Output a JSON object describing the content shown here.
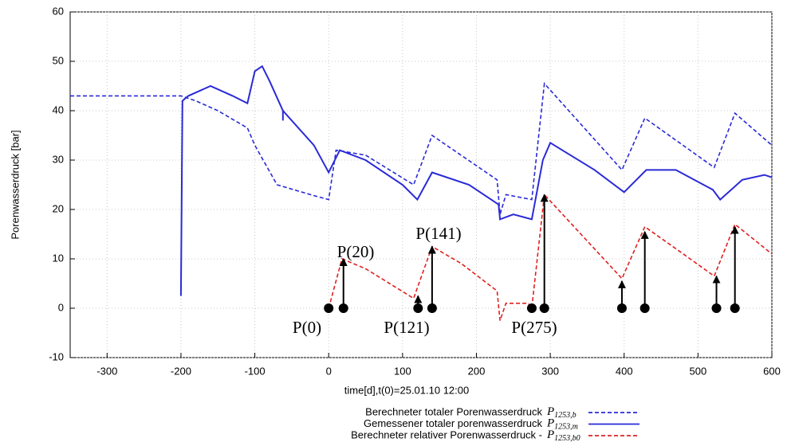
{
  "chart_data": {
    "type": "line",
    "xlabel": "time[d],t(0)=25.01.10 12:00",
    "ylabel": "Porenwasserdruck [bar]",
    "xlim": [
      -350,
      600
    ],
    "ylim": [
      -10,
      60
    ],
    "xticks": [
      -300,
      -200,
      -100,
      0,
      100,
      200,
      300,
      400,
      500,
      600
    ],
    "yticks": [
      -10,
      0,
      10,
      20,
      30,
      40,
      50,
      60
    ],
    "grid": true,
    "legend": "bottom",
    "series": [
      {
        "name": "Berechneter totaler Porenwasserdruck",
        "symbol": "P",
        "symbol_sub": "1253,b",
        "color": "#2a2ad8",
        "style": "dashed",
        "x": [
          -350,
          -200,
          -180,
          -150,
          -110,
          -100,
          -70,
          -20,
          0,
          10,
          50,
          115,
          140,
          228,
          232,
          240,
          275,
          292,
          397,
          428,
          522,
          550,
          600
        ],
        "values": [
          43,
          43,
          42,
          40,
          36.5,
          33,
          25,
          22.8,
          22,
          32,
          31,
          25,
          35,
          26,
          19,
          23,
          22,
          45.5,
          28,
          38.5,
          28.5,
          39.5,
          33
        ]
      },
      {
        "name": "Gemessener totaler porenwasserdruck",
        "symbol": "P",
        "symbol_sub": "1253,m",
        "color": "#2a2ad8",
        "style": "solid",
        "x": [
          -200,
          -198,
          -190,
          -160,
          -130,
          -110,
          -100,
          -90,
          -80,
          -62,
          -62,
          -62,
          -20,
          0,
          15,
          50,
          100,
          120,
          140,
          190,
          230,
          232,
          250,
          275,
          290,
          300,
          360,
          400,
          430,
          470,
          520,
          530,
          560,
          590,
          600
        ],
        "values": [
          2.5,
          42,
          43,
          45,
          43,
          41.5,
          48,
          49,
          46,
          40,
          38,
          40,
          33,
          27.5,
          32,
          30,
          25,
          22,
          27.5,
          25,
          21,
          18,
          19,
          18,
          30,
          33.5,
          28,
          23.5,
          28,
          28,
          24,
          22,
          26,
          27,
          26.5
        ]
      },
      {
        "name": "Berechneter relativer Porenwasserdruck -",
        "symbol": "P",
        "symbol_sub": "1253,b0",
        "color": "#e02020",
        "style": "dashed",
        "x": [
          0,
          18,
          50,
          115,
          140,
          180,
          228,
          232,
          240,
          270,
          275,
          292,
          360,
          397,
          428,
          480,
          522,
          550,
          600
        ],
        "values": [
          0,
          10,
          8,
          2,
          12.5,
          9,
          3.5,
          -2.5,
          1,
          1,
          0,
          23,
          12,
          6,
          16.5,
          11,
          6.5,
          17,
          11
        ]
      }
    ],
    "dots": [
      0,
      20,
      121,
      140,
      275,
      292,
      397,
      428,
      525,
      550
    ],
    "arrows": [
      {
        "x": 20,
        "value": 10
      },
      {
        "x": 121,
        "value": 2.5
      },
      {
        "x": 140,
        "value": 12.5
      },
      {
        "x": 292,
        "value": 23
      },
      {
        "x": 397,
        "value": 5.5
      },
      {
        "x": 428,
        "value": 15.5
      },
      {
        "x": 525,
        "value": 6.5
      },
      {
        "x": 550,
        "value": 16.5
      }
    ],
    "annotations": [
      "P(0)",
      "P(20)",
      "P(141)",
      "P(121)",
      "P(275)"
    ]
  }
}
